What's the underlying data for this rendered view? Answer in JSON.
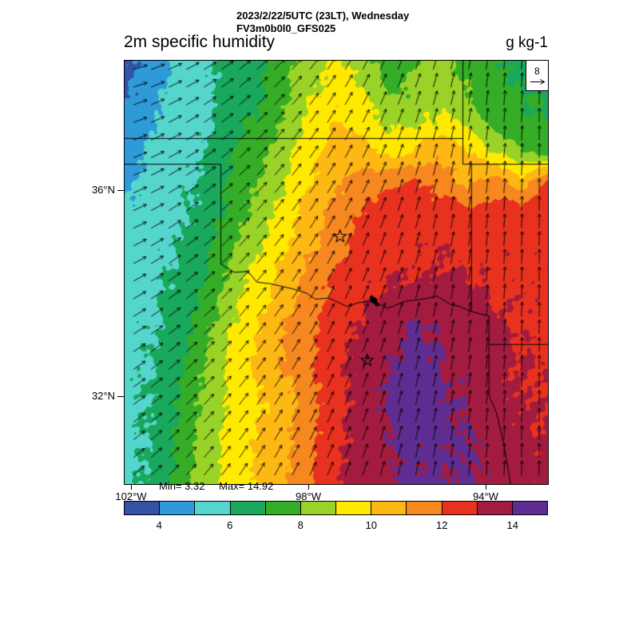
{
  "header": {
    "title_line1": "2023/2/22/5UTC (23LT), Wednesday",
    "title_line2": "FV3m0b0l0_GFS025",
    "field_title": "2m specific humidity",
    "units": "g kg-1"
  },
  "reference_vector": {
    "value": "8"
  },
  "stats": {
    "min_label": "Min= 3.32",
    "max_label": "Max= 14.92"
  },
  "axes": {
    "lat_ticks": [
      {
        "label": "36°N",
        "yf": 0.3057
      },
      {
        "label": "32°N",
        "yf": 0.7925
      }
    ],
    "lon_ticks": [
      {
        "label": "102°W",
        "xf": 0.0151
      },
      {
        "label": "98°W",
        "xf": 0.434
      },
      {
        "label": "94°W",
        "xf": 0.8528
      }
    ]
  },
  "chart_data": {
    "type": "heatmap",
    "title": "2m specific humidity",
    "units": "g kg-1",
    "valid_time": "2023/2/22/5UTC (23LT), Wednesday",
    "model": "FV3m0b0l0_GFS025",
    "min": 3.32,
    "max": 14.92,
    "lon_range_deg_west": [
      102.14,
      92.73
    ],
    "lat_range_deg_north": [
      30.29,
      38.51
    ],
    "levels": [
      3,
      4,
      5,
      6,
      7,
      8,
      9,
      10,
      11,
      12,
      13,
      14,
      15
    ],
    "colors": [
      "#3353a4",
      "#2f9ad8",
      "#55d6cd",
      "#19a85c",
      "#35ad27",
      "#99d327",
      "#ffe900",
      "#fdb813",
      "#f6881f",
      "#e8321f",
      "#a31c3f",
      "#5f2d91"
    ],
    "colorbar_ticks": [
      4,
      6,
      8,
      10,
      12,
      14
    ],
    "grid": {
      "cols": 17,
      "rows": 15,
      "values": [
        [
          3.7,
          4.3,
          5.3,
          5.6,
          6.3,
          6.6,
          7.5,
          8.6,
          9.3,
          8.4,
          7.4,
          7.8,
          8.4,
          7.6,
          7.0,
          6.8,
          6.6
        ],
        [
          3.9,
          4.6,
          5.4,
          5.7,
          6.4,
          6.8,
          7.8,
          8.8,
          9.6,
          9.0,
          7.8,
          8.2,
          8.6,
          8.0,
          7.2,
          7.0,
          6.8
        ],
        [
          4.4,
          4.8,
          5.5,
          5.8,
          6.5,
          7.2,
          8.2,
          9.2,
          10.0,
          9.6,
          8.6,
          8.8,
          9.2,
          8.6,
          7.6,
          7.2,
          7.0
        ],
        [
          4.6,
          5.2,
          5.6,
          6.0,
          6.8,
          7.6,
          8.6,
          9.6,
          10.6,
          10.4,
          9.6,
          10.2,
          10.8,
          10.2,
          9.0,
          8.0,
          7.4
        ],
        [
          4.9,
          5.4,
          5.7,
          6.2,
          7.0,
          8.0,
          9.0,
          10.0,
          11.0,
          11.4,
          11.8,
          12.2,
          11.4,
          10.6,
          11.6,
          10.2,
          12.3
        ],
        [
          5.2,
          5.5,
          5.8,
          6.4,
          7.3,
          8.4,
          9.4,
          10.4,
          11.2,
          12.0,
          12.4,
          12.6,
          12.6,
          12.4,
          12.6,
          12.5,
          12.6
        ],
        [
          5.4,
          5.6,
          6.0,
          6.6,
          7.6,
          8.8,
          9.8,
          10.8,
          11.6,
          12.4,
          12.6,
          12.8,
          12.8,
          12.7,
          12.8,
          12.7,
          12.8
        ],
        [
          5.5,
          5.7,
          6.2,
          7.0,
          8.2,
          9.3,
          10.2,
          11.2,
          12.0,
          12.6,
          12.8,
          13.0,
          13.2,
          12.9,
          12.8,
          12.7,
          12.7
        ],
        [
          5.5,
          5.8,
          6.4,
          7.3,
          8.6,
          9.7,
          10.6,
          11.5,
          12.3,
          12.8,
          13.3,
          13.6,
          13.6,
          13.4,
          13.0,
          12.8,
          12.7
        ],
        [
          5.6,
          5.9,
          6.6,
          7.6,
          9.0,
          10.0,
          10.9,
          11.8,
          12.5,
          13.2,
          13.8,
          14.2,
          13.8,
          13.6,
          13.2,
          12.9,
          12.8
        ],
        [
          5.6,
          6.0,
          6.8,
          7.9,
          9.3,
          10.2,
          11.0,
          11.9,
          12.7,
          13.4,
          14.0,
          14.4,
          14.0,
          13.7,
          13.3,
          13.0,
          12.9
        ],
        [
          5.6,
          6.1,
          7.0,
          8.2,
          9.3,
          9.8,
          10.6,
          11.6,
          12.5,
          13.4,
          14.2,
          14.5,
          14.2,
          13.8,
          13.4,
          13.1,
          12.9
        ],
        [
          5.6,
          6.1,
          7.1,
          8.3,
          9.4,
          9.9,
          10.6,
          11.7,
          12.6,
          13.5,
          14.1,
          14.4,
          14.3,
          13.9,
          13.5,
          13.2,
          13.0
        ],
        [
          5.6,
          6.2,
          7.2,
          8.4,
          9.4,
          10.0,
          10.7,
          11.8,
          12.7,
          13.6,
          14.0,
          14.2,
          14.2,
          14.0,
          13.6,
          13.3,
          13.1
        ],
        [
          5.6,
          6.2,
          7.3,
          8.5,
          9.5,
          10.0,
          10.8,
          11.9,
          12.8,
          13.6,
          13.9,
          14.1,
          14.1,
          14.0,
          13.7,
          13.4,
          13.2
        ]
      ]
    },
    "wind": {
      "reference": 8,
      "speed": 7.2,
      "dirs_deg_from_north": [
        [
          75,
          64,
          53,
          43,
          33,
          23,
          14,
          6,
          0
        ],
        [
          72,
          61,
          51,
          41,
          31,
          22,
          14,
          6,
          0
        ],
        [
          69,
          59,
          49,
          39,
          30,
          21,
          13,
          6,
          0
        ],
        [
          66,
          56,
          46,
          37,
          29,
          20,
          12,
          5,
          0
        ],
        [
          63,
          53,
          44,
          36,
          27,
          19,
          12,
          5,
          0
        ],
        [
          59,
          51,
          42,
          34,
          26,
          18,
          11,
          5,
          0
        ],
        [
          56,
          48,
          40,
          32,
          24,
          17,
          11,
          5,
          0
        ],
        [
          53,
          45,
          38,
          30,
          23,
          16,
          10,
          4,
          0
        ],
        [
          50,
          43,
          35,
          28,
          22,
          15,
          9,
          4,
          0
        ]
      ]
    },
    "borders": [
      [
        [
          0,
          0.1837
        ],
        [
          0.7992,
          0.1837
        ]
      ],
      [
        [
          0,
          0.2445
        ],
        [
          0.2274,
          0.2445
        ]
      ],
      [
        [
          0.2274,
          0.2445
        ],
        [
          0.2274,
          0.4805
        ]
      ],
      [
        [
          0.2274,
          0.4805
        ],
        [
          0.2593,
          0.5
        ],
        [
          0.2912,
          0.4976
        ],
        [
          0.3124,
          0.5231
        ],
        [
          0.3443,
          0.5268
        ],
        [
          0.3762,
          0.5341
        ],
        [
          0.3974,
          0.5389
        ],
        [
          0.4293,
          0.5487
        ],
        [
          0.4506,
          0.5633
        ],
        [
          0.4825,
          0.5608
        ],
        [
          0.525,
          0.5803
        ],
        [
          0.5568,
          0.5706
        ],
        [
          0.5887,
          0.5681
        ],
        [
          0.6206,
          0.5852
        ],
        [
          0.6631,
          0.5681
        ],
        [
          0.7056,
          0.5633
        ],
        [
          0.7375,
          0.556
        ],
        [
          0.7694,
          0.5755
        ],
        [
          0.7906,
          0.5803
        ],
        [
          0.8194,
          0.5925
        ]
      ],
      [
        [
          0.7992,
          0
        ],
        [
          0.7992,
          0.2445
        ],
        [
          0.8194,
          0.2445
        ],
        [
          0.8194,
          0.5925
        ]
      ],
      [
        [
          0.8194,
          0.2445
        ],
        [
          1,
          0.2445
        ]
      ],
      [
        [
          0.8194,
          0.5925
        ],
        [
          0.8608,
          0.603
        ],
        [
          0.8608,
          0.7919
        ],
        [
          0.878,
          0.83
        ],
        [
          0.89,
          0.88
        ],
        [
          0.9,
          0.93
        ],
        [
          0.912,
          1
        ]
      ],
      [
        [
          0.8608,
          0.6703
        ],
        [
          1,
          0.6703
        ]
      ]
    ],
    "markers": {
      "stars": [
        [
          0.509,
          0.415
        ],
        [
          0.573,
          0.708
        ]
      ],
      "lake": [
        [
          0.589,
          0.566
        ]
      ]
    }
  }
}
